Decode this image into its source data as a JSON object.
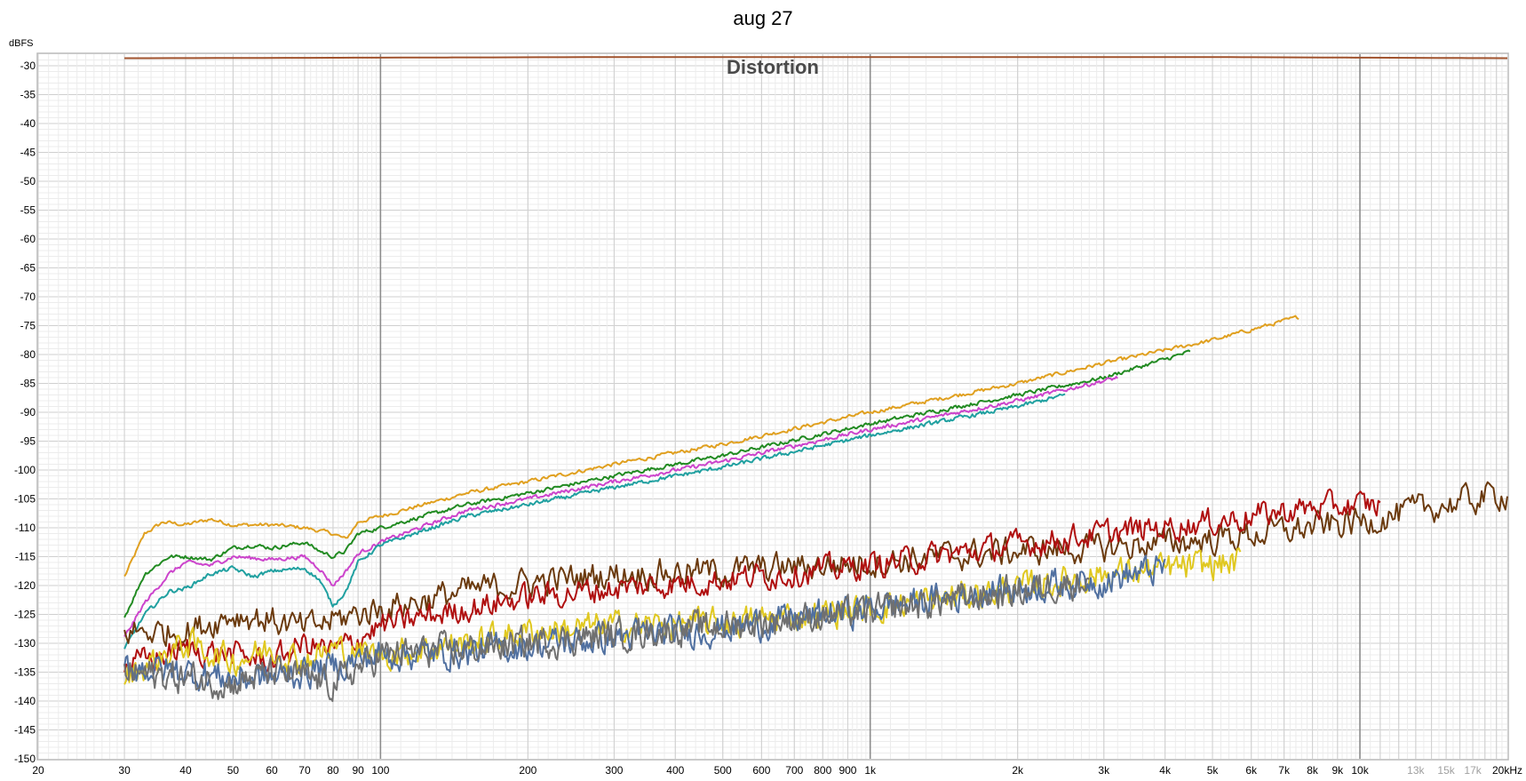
{
  "chart_data": {
    "type": "line",
    "title": "aug 27",
    "subtitle": "Distortion",
    "ylabel": "dBFS",
    "xlabel": "",
    "x_scale": "log",
    "xlim": [
      20,
      20000
    ],
    "ylim": [
      -150,
      -28
    ],
    "grid": true,
    "y_ticks": [
      -30,
      -35,
      -40,
      -45,
      -50,
      -55,
      -60,
      -65,
      -70,
      -75,
      -80,
      -85,
      -90,
      -95,
      -100,
      -105,
      -110,
      -115,
      -120,
      -125,
      -130,
      -135,
      -140,
      -145,
      -150
    ],
    "x_ticks": [
      {
        "v": 20,
        "label": "20"
      },
      {
        "v": 30,
        "label": "30"
      },
      {
        "v": 40,
        "label": "40"
      },
      {
        "v": 50,
        "label": "50"
      },
      {
        "v": 60,
        "label": "60"
      },
      {
        "v": 70,
        "label": "70"
      },
      {
        "v": 80,
        "label": "80"
      },
      {
        "v": 90,
        "label": "90"
      },
      {
        "v": 100,
        "label": "100"
      },
      {
        "v": 200,
        "label": "200"
      },
      {
        "v": 300,
        "label": "300"
      },
      {
        "v": 400,
        "label": "400"
      },
      {
        "v": 500,
        "label": "500"
      },
      {
        "v": 600,
        "label": "600"
      },
      {
        "v": 700,
        "label": "700"
      },
      {
        "v": 800,
        "label": "800"
      },
      {
        "v": 900,
        "label": "900"
      },
      {
        "v": 1000,
        "label": "1k"
      },
      {
        "v": 2000,
        "label": "2k"
      },
      {
        "v": 3000,
        "label": "3k"
      },
      {
        "v": 4000,
        "label": "4k"
      },
      {
        "v": 5000,
        "label": "5k"
      },
      {
        "v": 6000,
        "label": "6k"
      },
      {
        "v": 7000,
        "label": "7k"
      },
      {
        "v": 8000,
        "label": "8k"
      },
      {
        "v": 9000,
        "label": "9k"
      },
      {
        "v": 10000,
        "label": "10k"
      },
      {
        "v": 13000,
        "label": "13k",
        "faded": true
      },
      {
        "v": 15000,
        "label": "15k",
        "faded": true
      },
      {
        "v": 17000,
        "label": "17k",
        "faded": true
      },
      {
        "v": 20000,
        "label": "20kHz"
      }
    ],
    "series": [
      {
        "color": "#a0522d",
        "noise": 0,
        "points": [
          [
            30,
            -28.7
          ],
          [
            300,
            -28.5
          ],
          [
            1000,
            -28.5
          ],
          [
            5000,
            -28.5
          ],
          [
            20000,
            -28.7
          ]
        ]
      },
      {
        "color": "#e0a020",
        "noise": 0.3,
        "points": [
          [
            30,
            -118.5
          ],
          [
            33,
            -111
          ],
          [
            36,
            -109
          ],
          [
            40,
            -109.5
          ],
          [
            45,
            -108.5
          ],
          [
            50,
            -109.5
          ],
          [
            60,
            -109.5
          ],
          [
            70,
            -110
          ],
          [
            80,
            -111
          ],
          [
            85,
            -112
          ],
          [
            90,
            -109
          ],
          [
            100,
            -108
          ],
          [
            150,
            -104
          ],
          [
            200,
            -102
          ],
          [
            300,
            -99
          ],
          [
            500,
            -95.5
          ],
          [
            1000,
            -90
          ],
          [
            2000,
            -85
          ],
          [
            3000,
            -81.5
          ],
          [
            5000,
            -77.5
          ],
          [
            7500,
            -73.5
          ]
        ]
      },
      {
        "color": "#228b22",
        "noise": 0.3,
        "points": [
          [
            30,
            -125.5
          ],
          [
            33,
            -118
          ],
          [
            37,
            -115
          ],
          [
            40,
            -115
          ],
          [
            45,
            -115.5
          ],
          [
            50,
            -113.5
          ],
          [
            55,
            -113
          ],
          [
            60,
            -113.5
          ],
          [
            70,
            -112.5
          ],
          [
            75,
            -114
          ],
          [
            80,
            -115
          ],
          [
            85,
            -114
          ],
          [
            90,
            -111
          ],
          [
            100,
            -110
          ],
          [
            150,
            -106
          ],
          [
            200,
            -104
          ],
          [
            300,
            -101
          ],
          [
            500,
            -97.5
          ],
          [
            1000,
            -92
          ],
          [
            2000,
            -87
          ],
          [
            3000,
            -84
          ],
          [
            4500,
            -79.5
          ]
        ]
      },
      {
        "color": "#cc44cc",
        "noise": 0.3,
        "points": [
          [
            30,
            -129
          ],
          [
            33,
            -123
          ],
          [
            37,
            -118
          ],
          [
            40,
            -116
          ],
          [
            45,
            -116.5
          ],
          [
            50,
            -115
          ],
          [
            60,
            -115.5
          ],
          [
            70,
            -115
          ],
          [
            75,
            -117
          ],
          [
            80,
            -120
          ],
          [
            85,
            -117.5
          ],
          [
            90,
            -114.5
          ],
          [
            100,
            -112.5
          ],
          [
            150,
            -107
          ],
          [
            200,
            -105
          ],
          [
            300,
            -102
          ],
          [
            500,
            -98.5
          ],
          [
            1000,
            -93
          ],
          [
            2000,
            -88
          ],
          [
            3200,
            -84
          ]
        ]
      },
      {
        "color": "#20a0a0",
        "noise": 0.3,
        "points": [
          [
            30,
            -131
          ],
          [
            33,
            -125
          ],
          [
            37,
            -121
          ],
          [
            40,
            -120.5
          ],
          [
            45,
            -118
          ],
          [
            50,
            -117
          ],
          [
            55,
            -118.5
          ],
          [
            60,
            -117.5
          ],
          [
            70,
            -117
          ],
          [
            75,
            -119
          ],
          [
            80,
            -123.5
          ],
          [
            85,
            -121
          ],
          [
            90,
            -116
          ],
          [
            100,
            -113
          ],
          [
            150,
            -108
          ],
          [
            200,
            -106
          ],
          [
            300,
            -103
          ],
          [
            500,
            -99.5
          ],
          [
            1000,
            -94
          ],
          [
            2000,
            -89
          ],
          [
            2500,
            -87
          ]
        ]
      },
      {
        "color": "#6b3a0e",
        "noise": 2.2,
        "points": [
          [
            30,
            -128
          ],
          [
            40,
            -128
          ],
          [
            50,
            -125
          ],
          [
            60,
            -126
          ],
          [
            70,
            -127.5
          ],
          [
            80,
            -126
          ],
          [
            100,
            -124
          ],
          [
            150,
            -121
          ],
          [
            200,
            -119.5
          ],
          [
            300,
            -118
          ],
          [
            500,
            -117.5
          ],
          [
            1000,
            -116
          ],
          [
            2000,
            -114
          ],
          [
            3000,
            -113.5
          ],
          [
            5000,
            -112
          ],
          [
            10000,
            -109
          ],
          [
            15000,
            -106
          ],
          [
            20000,
            -104
          ]
        ]
      },
      {
        "color": "#b01010",
        "noise": 2.0,
        "points": [
          [
            30,
            -134
          ],
          [
            40,
            -131
          ],
          [
            50,
            -132
          ],
          [
            60,
            -133
          ],
          [
            70,
            -130
          ],
          [
            80,
            -131.5
          ],
          [
            100,
            -127
          ],
          [
            150,
            -124
          ],
          [
            200,
            -122
          ],
          [
            300,
            -120.5
          ],
          [
            500,
            -119
          ],
          [
            1000,
            -116.5
          ],
          [
            2000,
            -113
          ],
          [
            3000,
            -111
          ],
          [
            5000,
            -109
          ],
          [
            8000,
            -106.5
          ],
          [
            11000,
            -106
          ]
        ]
      },
      {
        "color": "#e0c820",
        "noise": 2.2,
        "points": [
          [
            30,
            -136
          ],
          [
            40,
            -130
          ],
          [
            50,
            -133
          ],
          [
            60,
            -131
          ],
          [
            70,
            -133
          ],
          [
            80,
            -131
          ],
          [
            100,
            -132
          ],
          [
            150,
            -130
          ],
          [
            200,
            -128
          ],
          [
            300,
            -127
          ],
          [
            500,
            -126.5
          ],
          [
            1000,
            -124
          ],
          [
            2000,
            -120.5
          ],
          [
            3000,
            -118
          ],
          [
            5000,
            -116.5
          ],
          [
            5700,
            -116
          ]
        ]
      },
      {
        "color": "#5070a0",
        "noise": 2.3,
        "points": [
          [
            30,
            -134
          ],
          [
            40,
            -135
          ],
          [
            50,
            -136
          ],
          [
            60,
            -136
          ],
          [
            70,
            -135
          ],
          [
            80,
            -134
          ],
          [
            100,
            -132
          ],
          [
            150,
            -131.5
          ],
          [
            200,
            -130.5
          ],
          [
            300,
            -129
          ],
          [
            500,
            -127.5
          ],
          [
            1000,
            -124
          ],
          [
            2000,
            -120.5
          ],
          [
            3000,
            -119
          ],
          [
            4000,
            -117
          ]
        ]
      },
      {
        "color": "#707070",
        "noise": 2.3,
        "points": [
          [
            30,
            -135
          ],
          [
            40,
            -136
          ],
          [
            50,
            -137
          ],
          [
            60,
            -135
          ],
          [
            70,
            -136
          ],
          [
            80,
            -137
          ],
          [
            100,
            -132
          ],
          [
            150,
            -131
          ],
          [
            200,
            -130
          ],
          [
            300,
            -128.5
          ],
          [
            500,
            -127
          ],
          [
            1000,
            -124.5
          ],
          [
            2000,
            -121
          ],
          [
            2800,
            -119
          ]
        ]
      }
    ]
  }
}
